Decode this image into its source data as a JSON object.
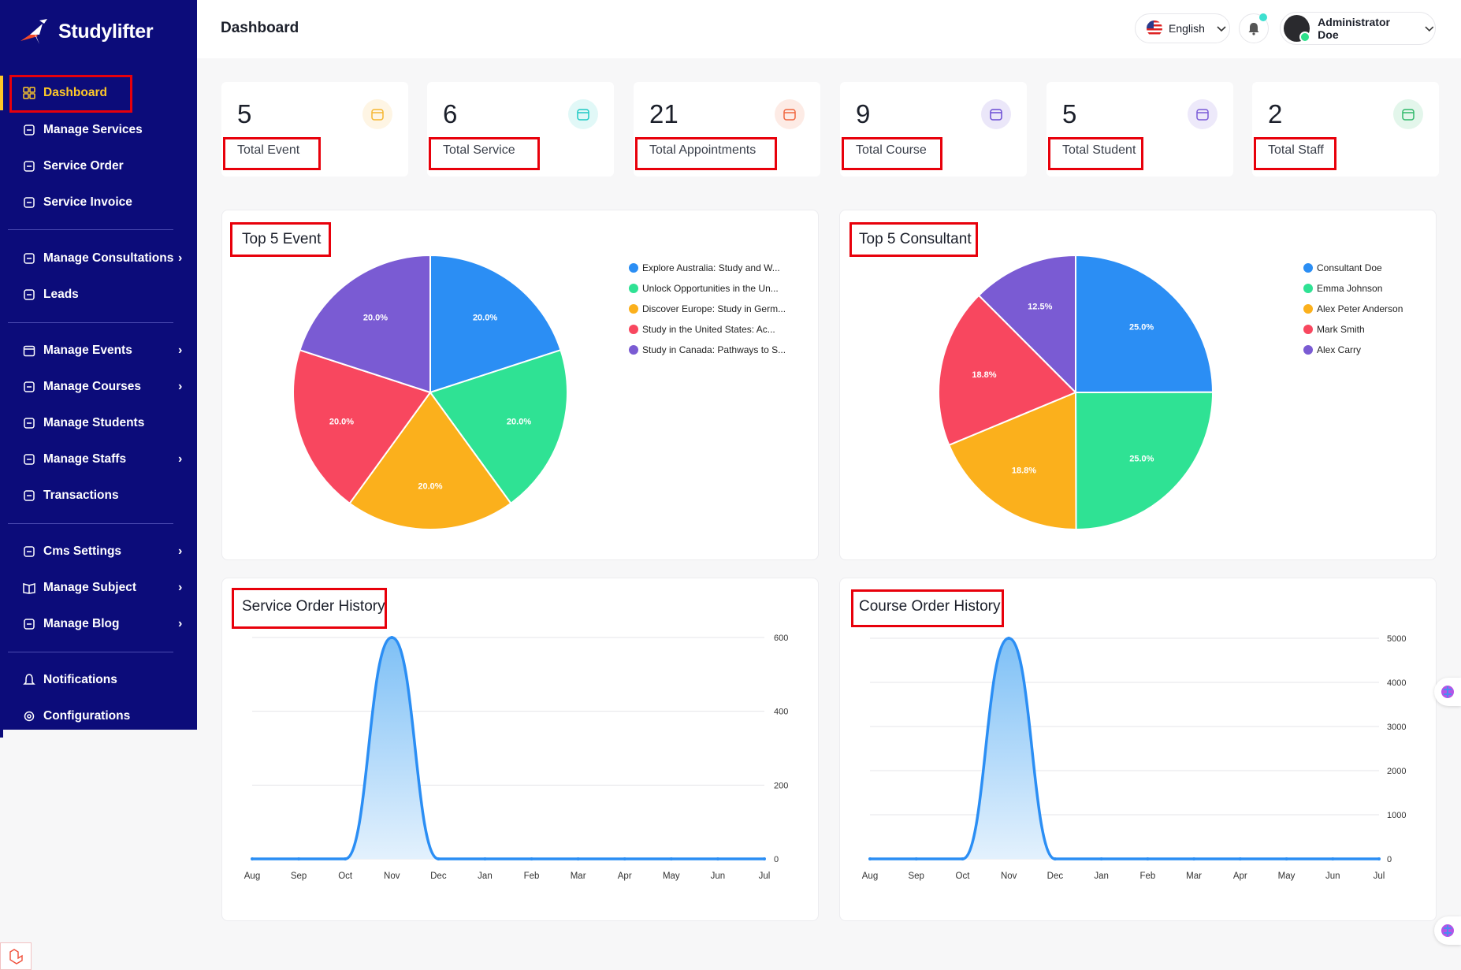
{
  "brand": {
    "name": "Studylifter"
  },
  "header": {
    "title": "Dashboard",
    "language": "English",
    "user": "Administrator Doe"
  },
  "sidebar": {
    "items": [
      {
        "label": "Dashboard",
        "icon": "dashboard-icon",
        "active": true,
        "chevron": false
      },
      {
        "label": "Manage Services",
        "icon": "services-icon",
        "chevron": false
      },
      {
        "label": "Service Order",
        "icon": "order-icon",
        "chevron": false
      },
      {
        "label": "Service Invoice",
        "icon": "invoice-icon",
        "chevron": false
      },
      {
        "label": "Manage Consultations",
        "icon": "consultation-icon",
        "chevron": true
      },
      {
        "label": "Leads",
        "icon": "leads-icon",
        "chevron": false
      },
      {
        "label": "Manage Events",
        "icon": "calendar-icon",
        "chevron": true
      },
      {
        "label": "Manage Courses",
        "icon": "course-icon",
        "chevron": true
      },
      {
        "label": "Manage Students",
        "icon": "students-icon",
        "chevron": false
      },
      {
        "label": "Manage Staffs",
        "icon": "staff-icon",
        "chevron": true
      },
      {
        "label": "Transactions",
        "icon": "transactions-icon",
        "chevron": false
      },
      {
        "label": "Cms Settings",
        "icon": "cms-icon",
        "chevron": true
      },
      {
        "label": "Manage Subject",
        "icon": "book-icon",
        "chevron": true
      },
      {
        "label": "Manage Blog",
        "icon": "blog-icon",
        "chevron": true
      },
      {
        "label": "Notifications",
        "icon": "bell-icon",
        "chevron": false
      },
      {
        "label": "Configurations",
        "icon": "gear-icon",
        "chevron": false
      }
    ]
  },
  "stats": [
    {
      "value": "5",
      "label": "Total Event",
      "icon": "calendar-icon",
      "color": "#f5b731"
    },
    {
      "value": "6",
      "label": "Total Service",
      "icon": "handshake-icon",
      "color": "#1ec9c4"
    },
    {
      "value": "21",
      "label": "Total Appointments",
      "icon": "calendar-check-icon",
      "color": "#f0663f"
    },
    {
      "value": "9",
      "label": "Total Course",
      "icon": "graduation-icon",
      "color": "#6a4bd4"
    },
    {
      "value": "5",
      "label": "Total Student",
      "icon": "students-icon",
      "color": "#7a5bd8"
    },
    {
      "value": "2",
      "label": "Total Staff",
      "icon": "staff-icon",
      "color": "#2fb86a"
    }
  ],
  "chart_data": [
    {
      "type": "pie",
      "title": "Top 5 Event",
      "labels": [
        "Explore Australia: Study and W...",
        "Unlock Opportunities in the Un...",
        "Discover Europe: Study in Germ...",
        "Study in the United States: Ac...",
        "Study in Canada: Pathways to S..."
      ],
      "values": [
        20.0,
        20.0,
        20.0,
        20.0,
        20.0
      ],
      "percent_labels": [
        "20.0%",
        "20.0%",
        "20.0%",
        "20.0%",
        "20.0%"
      ],
      "colors": [
        "#2b8ef4",
        "#2fe294",
        "#fbb01c",
        "#f8475f",
        "#7a5bd3"
      ],
      "legend": "right"
    },
    {
      "type": "pie",
      "title": "Top 5 Consultant",
      "labels": [
        "Consultant Doe",
        "Emma Johnson",
        "Alex Peter Anderson",
        "Mark Smith",
        "Alex Carry"
      ],
      "values": [
        25.0,
        25.0,
        18.8,
        18.8,
        12.5
      ],
      "percent_labels": [
        "25.0%",
        "25.0%",
        "18.8%",
        "18.8%",
        "12.5%"
      ],
      "colors": [
        "#2b8ef4",
        "#2fe294",
        "#fbb01c",
        "#f8475f",
        "#7a5bd3"
      ],
      "legend": "right"
    },
    {
      "type": "area",
      "title": "Service Order History",
      "x": [
        "Aug",
        "Sep",
        "Oct",
        "Nov",
        "Dec",
        "Jan",
        "Feb",
        "Mar",
        "Apr",
        "May",
        "Jun",
        "Jul"
      ],
      "values": [
        0,
        0,
        0,
        600,
        0,
        0,
        0,
        0,
        0,
        0,
        0,
        0
      ],
      "yticks": [
        0,
        200,
        400,
        600
      ],
      "ylim": [
        0,
        600
      ],
      "color": "#2b8ef4",
      "grid": true
    },
    {
      "type": "area",
      "title": "Course Order History",
      "x": [
        "Aug",
        "Sep",
        "Oct",
        "Nov",
        "Dec",
        "Jan",
        "Feb",
        "Mar",
        "Apr",
        "May",
        "Jun",
        "Jul"
      ],
      "values": [
        0,
        0,
        0,
        5000,
        0,
        0,
        0,
        0,
        0,
        0,
        0,
        0
      ],
      "yticks": [
        0,
        1000,
        2000,
        3000,
        4000,
        5000
      ],
      "ylim": [
        0,
        5000
      ],
      "color": "#2b8ef4",
      "grid": true
    }
  ]
}
